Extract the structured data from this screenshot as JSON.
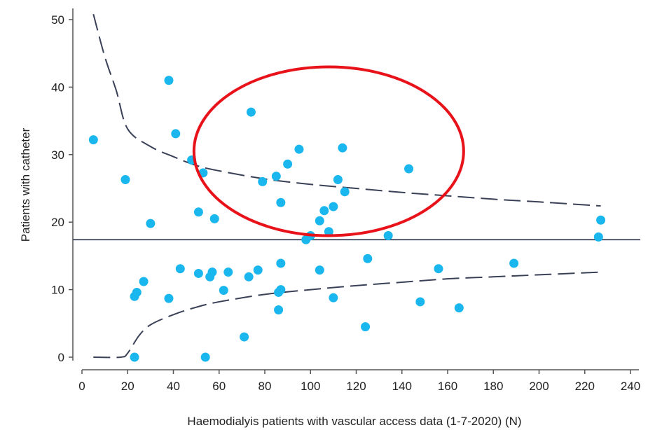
{
  "chart_data": {
    "type": "scatter",
    "title": "",
    "xlabel": "Haemodialyis patients with vascular access data (1-7-2020) (N)",
    "ylabel": "Patients with catheter",
    "xlim": [
      0,
      240
    ],
    "ylim": [
      0,
      50
    ],
    "x_ticks": [
      0,
      20,
      40,
      60,
      80,
      100,
      120,
      140,
      160,
      180,
      200,
      220,
      240
    ],
    "y_ticks": [
      0,
      10,
      20,
      30,
      40,
      50
    ],
    "grid": false,
    "points": [
      [
        5,
        32.2
      ],
      [
        19,
        26.3
      ],
      [
        23,
        0
      ],
      [
        23,
        9
      ],
      [
        24,
        9.6
      ],
      [
        27,
        11.2
      ],
      [
        30,
        19.8
      ],
      [
        38,
        41
      ],
      [
        38,
        8.7
      ],
      [
        41,
        33.1
      ],
      [
        43,
        13.1
      ],
      [
        48,
        29.2
      ],
      [
        51,
        21.5
      ],
      [
        51,
        12.4
      ],
      [
        53,
        27.3
      ],
      [
        54,
        0
      ],
      [
        56,
        11.9
      ],
      [
        57,
        12.6
      ],
      [
        58,
        20.5
      ],
      [
        62,
        9.9
      ],
      [
        64,
        12.6
      ],
      [
        71,
        3
      ],
      [
        73,
        11.9
      ],
      [
        74,
        36.3
      ],
      [
        77,
        12.9
      ],
      [
        79,
        26
      ],
      [
        85,
        26.8
      ],
      [
        86,
        9.6
      ],
      [
        86,
        7
      ],
      [
        87,
        22.9
      ],
      [
        87,
        10
      ],
      [
        87,
        13.9
      ],
      [
        90,
        28.6
      ],
      [
        95,
        30.8
      ],
      [
        98,
        17.4
      ],
      [
        100,
        18
      ],
      [
        104,
        20.2
      ],
      [
        104,
        12.9
      ],
      [
        106,
        21.7
      ],
      [
        108,
        18.6
      ],
      [
        110,
        22.3
      ],
      [
        110,
        8.8
      ],
      [
        112,
        26.3
      ],
      [
        114,
        31
      ],
      [
        115,
        24.5
      ],
      [
        124,
        4.5
      ],
      [
        125,
        14.6
      ],
      [
        134,
        18
      ],
      [
        143,
        27.9
      ],
      [
        148,
        8.2
      ],
      [
        156,
        13.1
      ],
      [
        165,
        7.3
      ],
      [
        189,
        13.9
      ],
      [
        226,
        17.8
      ],
      [
        227,
        20.3
      ]
    ],
    "mean_line": 17.4,
    "upper_limit": [
      [
        5,
        50.8
      ],
      [
        10,
        44.5
      ],
      [
        15,
        39.5
      ],
      [
        20,
        33.8
      ],
      [
        30,
        31.2
      ],
      [
        40,
        29.7
      ],
      [
        50,
        28.4
      ],
      [
        60,
        27.6
      ],
      [
        80,
        26.4
      ],
      [
        100,
        25.6
      ],
      [
        120,
        25.0
      ],
      [
        140,
        24.4
      ],
      [
        160,
        23.9
      ],
      [
        180,
        23.4
      ],
      [
        200,
        23.0
      ],
      [
        227,
        22.4
      ]
    ],
    "lower_limit": [
      [
        5,
        0
      ],
      [
        17,
        0
      ],
      [
        20,
        0.6
      ],
      [
        25,
        3.2
      ],
      [
        30,
        4.8
      ],
      [
        40,
        6.3
      ],
      [
        50,
        7.4
      ],
      [
        60,
        8.2
      ],
      [
        80,
        9.3
      ],
      [
        100,
        10.0
      ],
      [
        120,
        10.6
      ],
      [
        140,
        11.1
      ],
      [
        160,
        11.6
      ],
      [
        180,
        11.9
      ],
      [
        200,
        12.2
      ],
      [
        227,
        12.6
      ]
    ],
    "colors": {
      "points": "#1ab6ee",
      "lines": "#3a4157",
      "annotation": "#e8131a"
    },
    "annotation": {
      "shape": "ellipse",
      "center": [
        108,
        30.5
      ],
      "radius_x": 59,
      "radius_y": 12.5
    }
  }
}
